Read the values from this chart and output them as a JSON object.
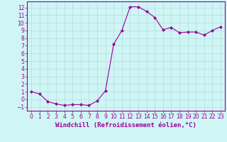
{
  "x": [
    0,
    1,
    2,
    3,
    4,
    5,
    6,
    7,
    8,
    9,
    10,
    11,
    12,
    13,
    14,
    15,
    16,
    17,
    18,
    19,
    20,
    21,
    22,
    23
  ],
  "y": [
    1.0,
    0.7,
    -0.3,
    -0.6,
    -0.8,
    -0.7,
    -0.7,
    -0.8,
    -0.2,
    1.1,
    7.2,
    9.0,
    12.1,
    12.1,
    11.5,
    10.7,
    9.1,
    9.4,
    8.7,
    8.8,
    8.8,
    8.4,
    9.0,
    9.5
  ],
  "line_color": "#990099",
  "marker": "D",
  "marker_size": 2,
  "bg_color": "#d0f5f5",
  "grid_color": "#b0dede",
  "xlabel": "Windchill (Refroidissement éolien,°C)",
  "xlabel_color": "#990099",
  "ylim": [
    -1.5,
    12.8
  ],
  "xlim": [
    -0.5,
    23.5
  ],
  "yticks": [
    -1,
    0,
    1,
    2,
    3,
    4,
    5,
    6,
    7,
    8,
    9,
    10,
    11,
    12
  ],
  "xticks": [
    0,
    1,
    2,
    3,
    4,
    5,
    6,
    7,
    8,
    9,
    10,
    11,
    12,
    13,
    14,
    15,
    16,
    17,
    18,
    19,
    20,
    21,
    22,
    23
  ],
  "tick_color": "#990099",
  "tick_fontsize": 5.5,
  "xlabel_fontsize": 6.5,
  "spine_color": "#990099"
}
